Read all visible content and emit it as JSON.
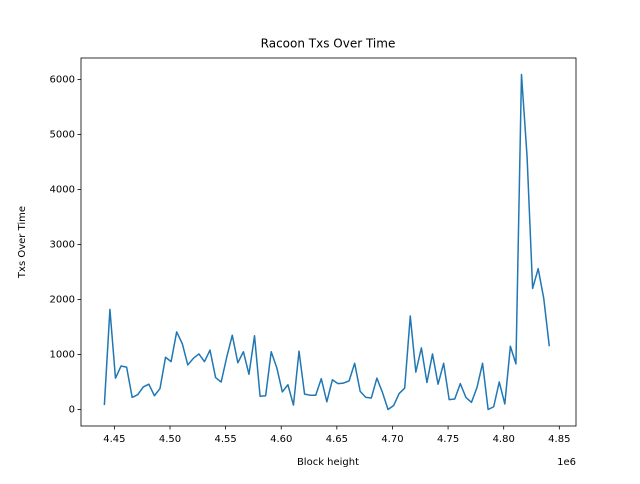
{
  "chart_data": {
    "type": "line",
    "title": "Racoon Txs Over Time",
    "x_label": "Block height",
    "y_label": "Txs Over Time",
    "x_offset_label": "1e6",
    "x": [
      4441000,
      4446000,
      4451000,
      4456000,
      4461000,
      4466000,
      4471000,
      4476000,
      4481000,
      4486000,
      4491000,
      4496000,
      4501000,
      4506000,
      4511000,
      4516000,
      4521000,
      4526000,
      4531000,
      4536000,
      4541000,
      4546000,
      4551000,
      4556000,
      4561000,
      4566000,
      4571000,
      4576000,
      4581000,
      4586000,
      4591000,
      4596000,
      4601000,
      4606000,
      4611000,
      4616000,
      4621000,
      4626000,
      4631000,
      4636000,
      4641000,
      4646000,
      4651000,
      4656000,
      4661000,
      4666000,
      4671000,
      4676000,
      4681000,
      4686000,
      4691000,
      4696000,
      4701000,
      4706000,
      4711000,
      4716000,
      4721000,
      4726000,
      4731000,
      4736000,
      4741000,
      4746000,
      4751000,
      4756000,
      4761000,
      4766000,
      4771000,
      4776000,
      4781000,
      4786000,
      4791000,
      4796000,
      4801000,
      4806000,
      4811000,
      4816000,
      4821000,
      4826000,
      4831000,
      4836000,
      4841000
    ],
    "series": [
      {
        "color": "#1f77b4",
        "values": [
          80,
          1820,
          570,
          790,
          770,
          220,
          270,
          410,
          460,
          250,
          380,
          950,
          870,
          1410,
          1200,
          810,
          930,
          1010,
          870,
          1080,
          580,
          500,
          950,
          1350,
          850,
          1050,
          640,
          1340,
          240,
          250,
          1050,
          760,
          320,
          450,
          80,
          1060,
          280,
          260,
          260,
          560,
          140,
          540,
          470,
          480,
          520,
          840,
          330,
          220,
          210,
          570,
          310,
          0,
          70,
          290,
          390,
          1700,
          680,
          1120,
          490,
          1010,
          460,
          840,
          180,
          190,
          470,
          220,
          130,
          400,
          840,
          0,
          50,
          500,
          100,
          1150,
          830,
          6090,
          4600,
          2200,
          2560,
          2020,
          1150
        ]
      }
    ],
    "xlim": [
      4420000,
      4865000
    ],
    "ylim": [
      -300,
      6390
    ],
    "xticks": [
      {
        "value": 4450000,
        "label": "4.45"
      },
      {
        "value": 4500000,
        "label": "4.50"
      },
      {
        "value": 4550000,
        "label": "4.55"
      },
      {
        "value": 4600000,
        "label": "4.60"
      },
      {
        "value": 4650000,
        "label": "4.65"
      },
      {
        "value": 4700000,
        "label": "4.70"
      },
      {
        "value": 4750000,
        "label": "4.75"
      },
      {
        "value": 4800000,
        "label": "4.80"
      },
      {
        "value": 4850000,
        "label": "4.85"
      }
    ],
    "yticks": [
      0,
      1000,
      2000,
      3000,
      4000,
      5000,
      6000
    ]
  }
}
